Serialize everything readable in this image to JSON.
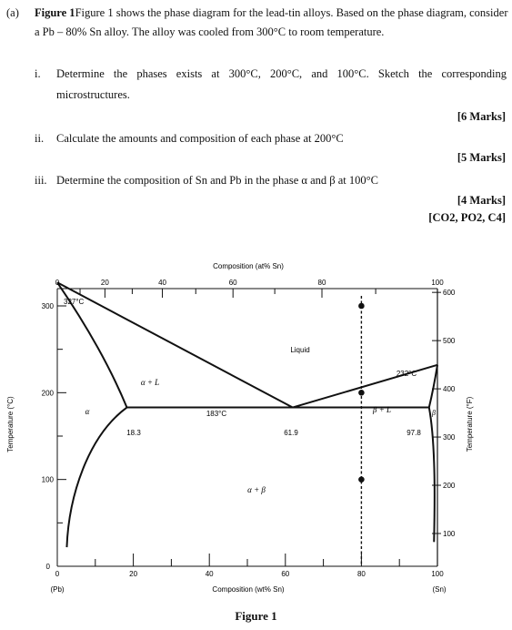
{
  "question": {
    "part_label": "(a)",
    "intro_line1": "Figure 1 shows the phase diagram for the lead-tin alloys. Based on the phase diagram, consider",
    "intro_line2": "a Pb – 80% Sn alloy. The alloy was cooled from 300°C to room temperature.",
    "items": [
      {
        "num": "i.",
        "line1": "Determine the phases exists at 300°C, 200°C, and 100°C. Sketch the corresponding",
        "line2": "microstructures.",
        "marks": "[6 Marks]"
      },
      {
        "num": "ii.",
        "line1": "Calculate the amounts and composition of each phase at 200°C",
        "marks": "[5 Marks]"
      },
      {
        "num": "iii.",
        "line1": "Determine the composition of Sn and Pb in the phase α and β at 100°C",
        "marks": "[4 Marks]"
      }
    ],
    "outcomes": "[CO2, PO2, C4]"
  },
  "figure": {
    "caption": "Figure 1",
    "top_axis_title": "Composition (at% Sn)",
    "bottom_axis_title": "Composition (wt% Sn)",
    "left_axis_title": "Temperature (°C)",
    "right_axis_title": "Temperature (°F)",
    "pb_label": "(Pb)",
    "sn_label": "(Sn)",
    "region_labels": {
      "liquid": "Liquid",
      "alpha_l": "α + L",
      "beta_l": "β + L",
      "alpha": "α",
      "beta": "β",
      "alpha_beta": "α + β"
    },
    "annotations": {
      "pb_melt": "327°C",
      "sn_melt": "232°C",
      "eutectic_temp": "183°C",
      "alpha_max": "18.3",
      "eutectic_comp": "61.9",
      "beta_min": "97.8"
    }
  },
  "chart_data": {
    "type": "phase-diagram",
    "x_wt_ticks": [
      0,
      20,
      40,
      60,
      80,
      100
    ],
    "x_at_ticks": [
      0,
      20,
      40,
      60,
      80,
      100
    ],
    "y_c_ticks": [
      0,
      100,
      200,
      300
    ],
    "y_f_ticks": [
      100,
      200,
      300,
      400,
      500,
      600
    ],
    "xlim": [
      0,
      100
    ],
    "ylim_c": [
      0,
      340
    ],
    "pb_melting_point_c": 327,
    "sn_melting_point_c": 232,
    "eutectic": {
      "temp_c": 183,
      "alpha_wt": 18.3,
      "liquid_wt": 61.9,
      "beta_wt": 97.8
    },
    "liquidus_left": [
      [
        0,
        327
      ],
      [
        61.9,
        183
      ]
    ],
    "liquidus_right": [
      [
        61.9,
        183
      ],
      [
        100,
        232
      ]
    ],
    "solidus_left": [
      [
        0,
        327
      ],
      [
        18.3,
        183
      ]
    ],
    "solvus_left": [
      [
        18.3,
        183
      ],
      [
        11,
        120
      ],
      [
        5,
        60
      ],
      [
        2,
        20
      ]
    ],
    "solidus_right": [
      [
        97.8,
        183
      ],
      [
        100,
        232
      ]
    ],
    "solvus_right": [
      [
        97.8,
        183
      ],
      [
        98.9,
        100
      ],
      [
        99.3,
        30
      ]
    ],
    "alloy_line_wt": 80,
    "alloy_points_c": [
      300,
      200,
      100
    ]
  }
}
